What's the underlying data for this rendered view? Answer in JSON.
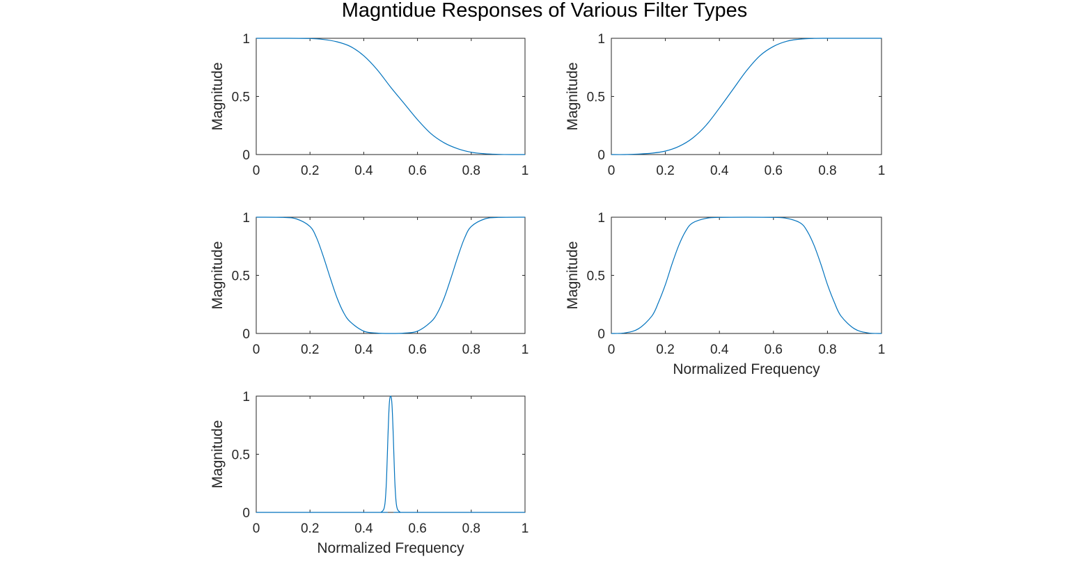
{
  "title": "Magntidue Responses of Various Filter Types",
  "chart_data": [
    {
      "type": "line",
      "xlabel": "",
      "ylabel": "Magnitude",
      "xlim": [
        0,
        1
      ],
      "ylim": [
        0,
        1
      ],
      "xticks": [
        0,
        0.2,
        0.4,
        0.6,
        0.8,
        1
      ],
      "xtick_labels": [
        "0",
        "0.2",
        "0.4",
        "0.6",
        "0.8",
        "1"
      ],
      "yticks": [
        0,
        0.5,
        1
      ],
      "ytick_labels": [
        "0",
        "0.5",
        "1"
      ],
      "grid": false,
      "color": "#0072BD",
      "series": [
        {
          "x": [
            0,
            0.1,
            0.2,
            0.25,
            0.3,
            0.35,
            0.4,
            0.45,
            0.5,
            0.55,
            0.6,
            0.65,
            0.7,
            0.75,
            0.8,
            0.85,
            0.9,
            0.95,
            1.0
          ],
          "values": [
            1.0,
            1.0,
            0.998,
            0.99,
            0.97,
            0.93,
            0.85,
            0.73,
            0.58,
            0.44,
            0.3,
            0.18,
            0.1,
            0.05,
            0.02,
            0.007,
            0.002,
            0.0,
            0.0
          ]
        }
      ]
    },
    {
      "type": "line",
      "xlabel": "",
      "ylabel": "Magnitude",
      "xlim": [
        0,
        1
      ],
      "ylim": [
        0,
        1
      ],
      "xticks": [
        0,
        0.2,
        0.4,
        0.6,
        0.8,
        1
      ],
      "xtick_labels": [
        "0",
        "0.2",
        "0.4",
        "0.6",
        "0.8",
        "1"
      ],
      "yticks": [
        0,
        0.5,
        1
      ],
      "ytick_labels": [
        "0",
        "0.5",
        "1"
      ],
      "grid": false,
      "color": "#0072BD",
      "series": [
        {
          "x": [
            0,
            0.05,
            0.1,
            0.15,
            0.2,
            0.25,
            0.3,
            0.35,
            0.4,
            0.45,
            0.5,
            0.55,
            0.6,
            0.65,
            0.7,
            0.75,
            0.8,
            0.9,
            1.0
          ],
          "values": [
            0.0,
            0.0,
            0.004,
            0.012,
            0.03,
            0.07,
            0.14,
            0.25,
            0.4,
            0.56,
            0.72,
            0.85,
            0.93,
            0.975,
            0.993,
            0.999,
            1.0,
            1.0,
            1.0
          ]
        }
      ]
    },
    {
      "type": "line",
      "xlabel": "",
      "ylabel": "Magnitude",
      "xlim": [
        0,
        1
      ],
      "ylim": [
        0,
        1
      ],
      "xticks": [
        0,
        0.2,
        0.4,
        0.6,
        0.8,
        1
      ],
      "xtick_labels": [
        "0",
        "0.2",
        "0.4",
        "0.6",
        "0.8",
        "1"
      ],
      "yticks": [
        0,
        0.5,
        1
      ],
      "ytick_labels": [
        "0",
        "0.5",
        "1"
      ],
      "grid": false,
      "color": "#0072BD",
      "series": [
        {
          "x": [
            0,
            0.1,
            0.15,
            0.2,
            0.225,
            0.25,
            0.275,
            0.3,
            0.325,
            0.35,
            0.4,
            0.45,
            0.5,
            0.55,
            0.6,
            0.65,
            0.675,
            0.7,
            0.725,
            0.75,
            0.775,
            0.8,
            0.85,
            0.9,
            1.0
          ],
          "values": [
            1.0,
            0.998,
            0.985,
            0.92,
            0.82,
            0.66,
            0.48,
            0.31,
            0.18,
            0.1,
            0.02,
            0.003,
            0.0,
            0.003,
            0.02,
            0.1,
            0.18,
            0.31,
            0.48,
            0.66,
            0.82,
            0.92,
            0.985,
            0.998,
            1.0
          ]
        }
      ]
    },
    {
      "type": "line",
      "xlabel": "Normalized Frequency",
      "ylabel": "Magnitude",
      "xlim": [
        0,
        1
      ],
      "ylim": [
        0,
        1
      ],
      "xticks": [
        0,
        0.2,
        0.4,
        0.6,
        0.8,
        1
      ],
      "xtick_labels": [
        "0",
        "0.2",
        "0.4",
        "0.6",
        "0.8",
        "1"
      ],
      "yticks": [
        0,
        0.5,
        1
      ],
      "ytick_labels": [
        "0",
        "0.5",
        "1"
      ],
      "grid": false,
      "color": "#0072BD",
      "series": [
        {
          "x": [
            0,
            0.05,
            0.1,
            0.15,
            0.175,
            0.2,
            0.225,
            0.25,
            0.275,
            0.3,
            0.35,
            0.4,
            0.5,
            0.6,
            0.65,
            0.7,
            0.725,
            0.75,
            0.775,
            0.8,
            0.825,
            0.85,
            0.9,
            0.95,
            1.0
          ],
          "values": [
            0.0,
            0.005,
            0.04,
            0.15,
            0.27,
            0.42,
            0.6,
            0.76,
            0.88,
            0.95,
            0.99,
            0.998,
            1.0,
            0.998,
            0.99,
            0.95,
            0.88,
            0.76,
            0.6,
            0.42,
            0.27,
            0.15,
            0.04,
            0.005,
            0.0
          ]
        }
      ]
    },
    {
      "type": "line",
      "xlabel": "Normalized Frequency",
      "ylabel": "Magnitude",
      "xlim": [
        0,
        1
      ],
      "ylim": [
        0,
        1
      ],
      "xticks": [
        0,
        0.2,
        0.4,
        0.6,
        0.8,
        1
      ],
      "xtick_labels": [
        "0",
        "0.2",
        "0.4",
        "0.6",
        "0.8",
        "1"
      ],
      "yticks": [
        0,
        0.5,
        1
      ],
      "ytick_labels": [
        "0",
        "0.5",
        "1"
      ],
      "grid": false,
      "color": "#0072BD",
      "series": [
        {
          "x": [
            0,
            0.45,
            0.465,
            0.475,
            0.48,
            0.485,
            0.49,
            0.495,
            0.5,
            0.505,
            0.51,
            0.515,
            0.52,
            0.525,
            0.535,
            0.55,
            1.0
          ],
          "values": [
            0.0,
            0.0,
            0.003,
            0.03,
            0.1,
            0.3,
            0.65,
            0.93,
            1.0,
            0.93,
            0.65,
            0.3,
            0.1,
            0.03,
            0.003,
            0.0,
            0.0
          ]
        }
      ]
    }
  ]
}
